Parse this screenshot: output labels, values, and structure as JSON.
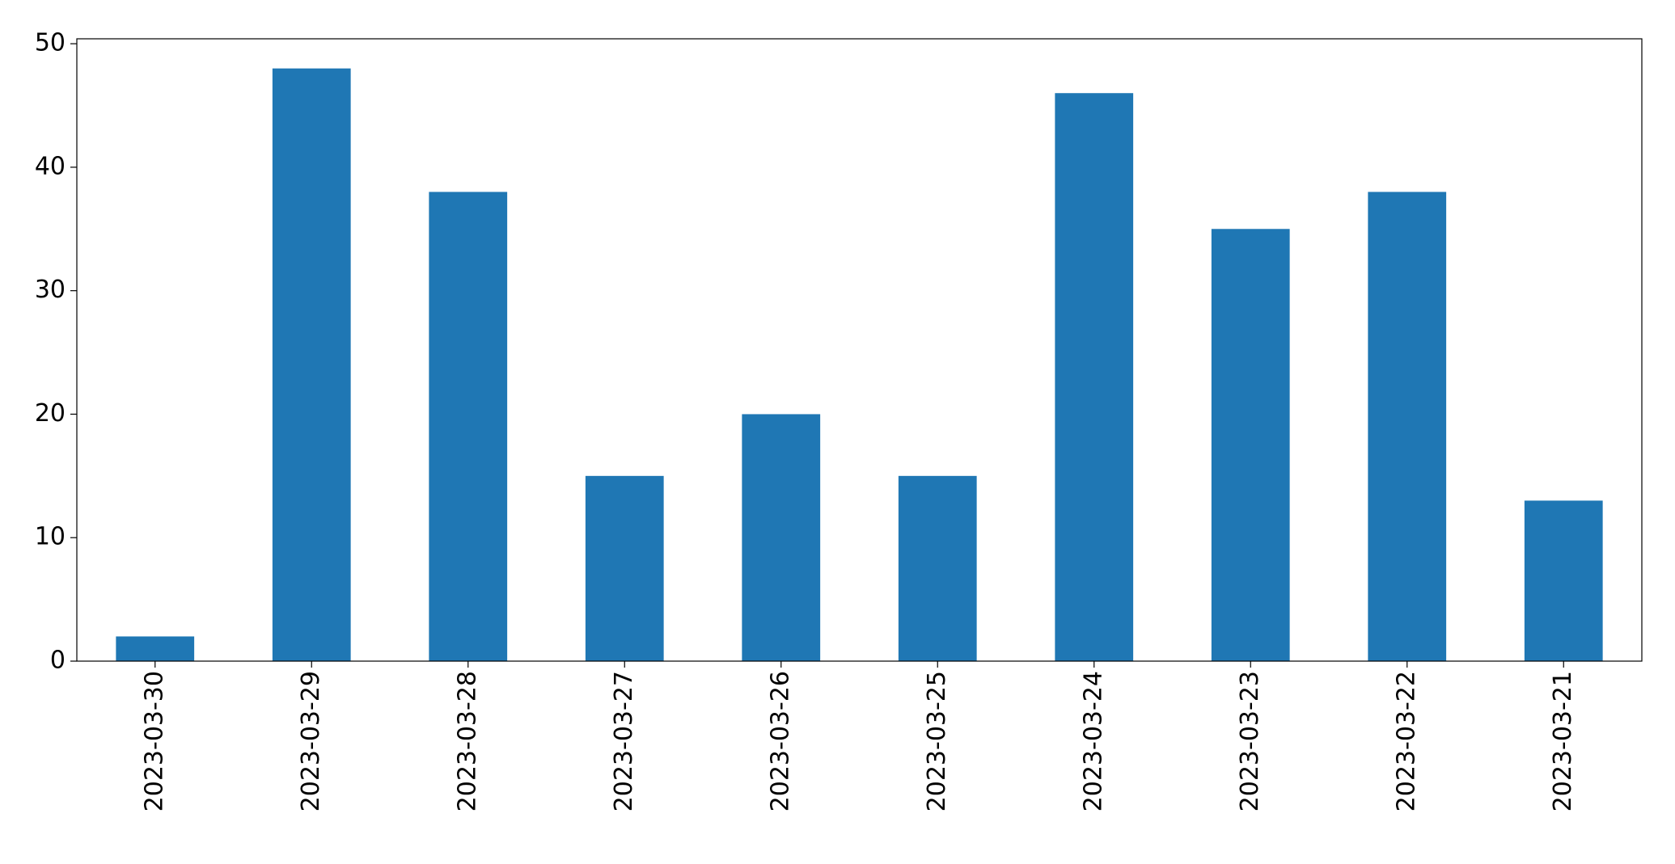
{
  "chart_data": {
    "type": "bar",
    "categories": [
      "2023-03-30",
      "2023-03-29",
      "2023-03-28",
      "2023-03-27",
      "2023-03-26",
      "2023-03-25",
      "2023-03-24",
      "2023-03-23",
      "2023-03-22",
      "2023-03-21"
    ],
    "values": [
      2,
      48,
      38,
      15,
      20,
      15,
      46,
      35,
      38,
      13
    ],
    "color": "#1f77b4",
    "ylim": [
      0,
      50.4
    ],
    "yticks": [
      0,
      10,
      20,
      30,
      40,
      50
    ],
    "grid": false
  }
}
